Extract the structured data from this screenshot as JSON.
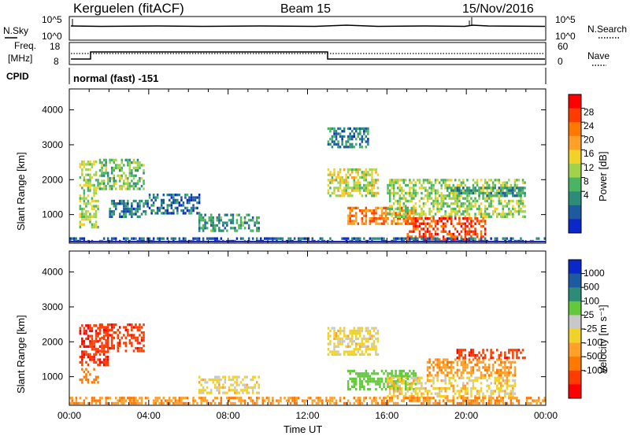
{
  "header": {
    "station": "Kerguelen (fitACF)",
    "beam": "Beam 15",
    "date": "15/Nov/2016"
  },
  "nsky_panel": {
    "label": "N.Sky",
    "right_label": "N.Search",
    "left_ticks": [
      "10^5",
      "10^0"
    ],
    "right_ticks": [
      "10^5",
      "10^0"
    ]
  },
  "freq_panel": {
    "label_line1": "Freq.",
    "label_line2": "[MHz]",
    "left_ticks": [
      "18",
      "8"
    ],
    "right_ticks": [
      "60",
      "0"
    ],
    "right_label": "Nave"
  },
  "cpid": {
    "label": "CPID",
    "mode": "normal (fast) -151"
  },
  "power_colorbar": {
    "title": "Power [dB]",
    "ticks": [
      "28",
      "24",
      "20",
      "16",
      "12",
      "8",
      "4"
    ],
    "colors": [
      "#ff0000",
      "#ff3c00",
      "#ff7800",
      "#ffa028",
      "#f0d228",
      "#a0d24b",
      "#4bb464",
      "#2d8c78",
      "#1e5aa0",
      "#0a28c8"
    ]
  },
  "velocity_colorbar": {
    "title": "Velocity [m s⁻¹]",
    "ticks": [
      "1000",
      "500",
      "100",
      "25",
      "-25",
      "-100",
      "-500",
      "-1000"
    ],
    "colors": [
      "#0a28c8",
      "#1e5aa0",
      "#2d8c78",
      "#64c83c",
      "#c8c8c8",
      "#f0d228",
      "#ffa028",
      "#ff7800",
      "#ff3c00",
      "#ff0000"
    ]
  },
  "axes": {
    "ylabel": "Slant Range [km]",
    "xlabel": "Time UT",
    "yticks": [
      "4000",
      "3000",
      "2000",
      "1000"
    ],
    "xticks": [
      "00:00",
      "04:00",
      "08:00",
      "12:00",
      "16:00",
      "20:00",
      "00:00"
    ]
  },
  "chart_data": [
    {
      "type": "heatmap",
      "name": "power",
      "title": "",
      "xlabel": "",
      "ylabel": "Slant Range [km]",
      "xlim": [
        0,
        24
      ],
      "ylim": [
        180,
        4600
      ],
      "value_range": [
        0,
        32
      ],
      "regions": [
        {
          "t": [
            0.5,
            1.5
          ],
          "r": [
            600,
            2500
          ],
          "v": 14
        },
        {
          "t": [
            1.5,
            3.8
          ],
          "r": [
            1700,
            2600
          ],
          "v": 12
        },
        {
          "t": [
            2.0,
            4.0
          ],
          "r": [
            900,
            1400
          ],
          "v": 6
        },
        {
          "t": [
            4.0,
            6.5
          ],
          "r": [
            1000,
            1600
          ],
          "v": 5
        },
        {
          "t": [
            6.5,
            9.5
          ],
          "r": [
            500,
            1000
          ],
          "v": 8
        },
        {
          "t": [
            13.0,
            15.5
          ],
          "r": [
            1500,
            2300
          ],
          "v": 16
        },
        {
          "t": [
            13.0,
            15.0
          ],
          "r": [
            2900,
            3500
          ],
          "v": 6
        },
        {
          "t": [
            14.0,
            17.5
          ],
          "r": [
            700,
            1200
          ],
          "v": 24
        },
        {
          "t": [
            16.0,
            23.0
          ],
          "r": [
            900,
            2000
          ],
          "v": 14
        },
        {
          "t": [
            17.0,
            21.0
          ],
          "r": [
            250,
            900
          ],
          "v": 28
        },
        {
          "t": [
            19.0,
            23.0
          ],
          "r": [
            1500,
            1800
          ],
          "v": 8
        },
        {
          "t": [
            0.0,
            24.0
          ],
          "r": [
            200,
            350
          ],
          "v": 4
        }
      ]
    },
    {
      "type": "heatmap",
      "name": "velocity",
      "title": "",
      "xlabel": "Time UT",
      "ylabel": "Slant Range [km]",
      "xlim": [
        0,
        24
      ],
      "ylim": [
        180,
        4600
      ],
      "value_range": [
        -1000,
        1000
      ],
      "regions": [
        {
          "t": [
            0.5,
            2.0
          ],
          "r": [
            1300,
            2500
          ],
          "v": -450
        },
        {
          "t": [
            1.5,
            3.8
          ],
          "r": [
            1700,
            2500
          ],
          "v": -400
        },
        {
          "t": [
            0.5,
            1.5
          ],
          "r": [
            800,
            1200
          ],
          "v": -150
        },
        {
          "t": [
            6.5,
            9.5
          ],
          "r": [
            500,
            1000
          ],
          "v": 10
        },
        {
          "t": [
            13.0,
            15.5
          ],
          "r": [
            1600,
            2400
          ],
          "v": 10
        },
        {
          "t": [
            14.0,
            17.5
          ],
          "r": [
            600,
            1200
          ],
          "v": 150
        },
        {
          "t": [
            16.0,
            22.5
          ],
          "r": [
            400,
            1000
          ],
          "v": 0
        },
        {
          "t": [
            18.0,
            22.5
          ],
          "r": [
            1000,
            1500
          ],
          "v": -80
        },
        {
          "t": [
            19.5,
            23.0
          ],
          "r": [
            1500,
            1800
          ],
          "v": -450
        },
        {
          "t": [
            0.0,
            24.0
          ],
          "r": [
            200,
            400
          ],
          "v": -90
        }
      ]
    }
  ]
}
